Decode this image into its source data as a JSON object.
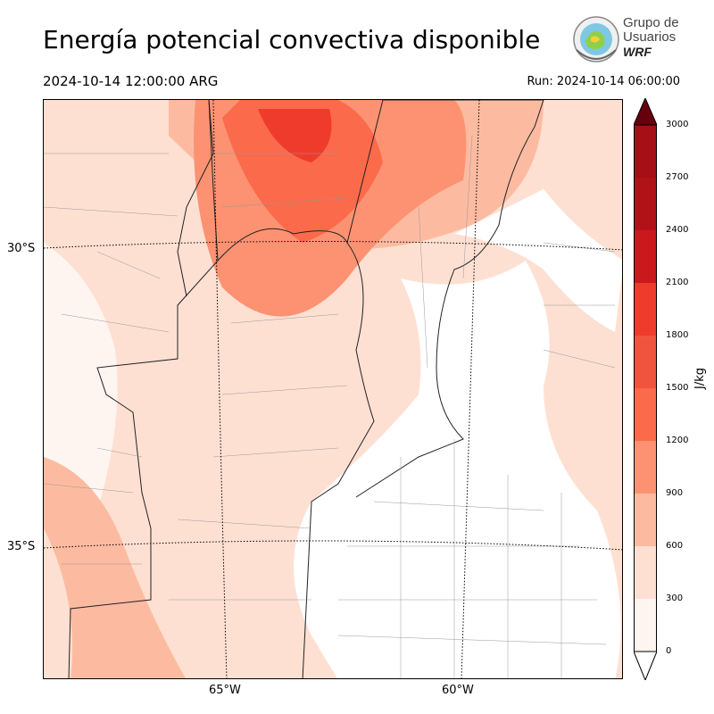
{
  "title": "Energía potencial convectiva disponible",
  "valid_time": "2024-10-14 12:00:00 ARG",
  "run_time": "Run: 2024-10-14 06:00:00",
  "logo": {
    "line1": "Grupo de",
    "line2": "Usuarios",
    "line3": "WRF"
  },
  "axes": {
    "lat_labels": [
      "30°S",
      "35°S"
    ],
    "lon_labels": [
      "65°W",
      "60°W"
    ]
  },
  "colorbar": {
    "label": "J/kg",
    "ticks": [
      "0",
      "300",
      "600",
      "900",
      "1200",
      "1500",
      "1800",
      "2100",
      "2400",
      "2700",
      "3000"
    ],
    "colors": [
      "#fff5f0",
      "#fee0d2",
      "#fcbba1",
      "#fc9272",
      "#fb6a4a",
      "#f0543f",
      "#ef3b2c",
      "#cb181d",
      "#b11218",
      "#a50f15",
      "#67000d"
    ]
  }
}
